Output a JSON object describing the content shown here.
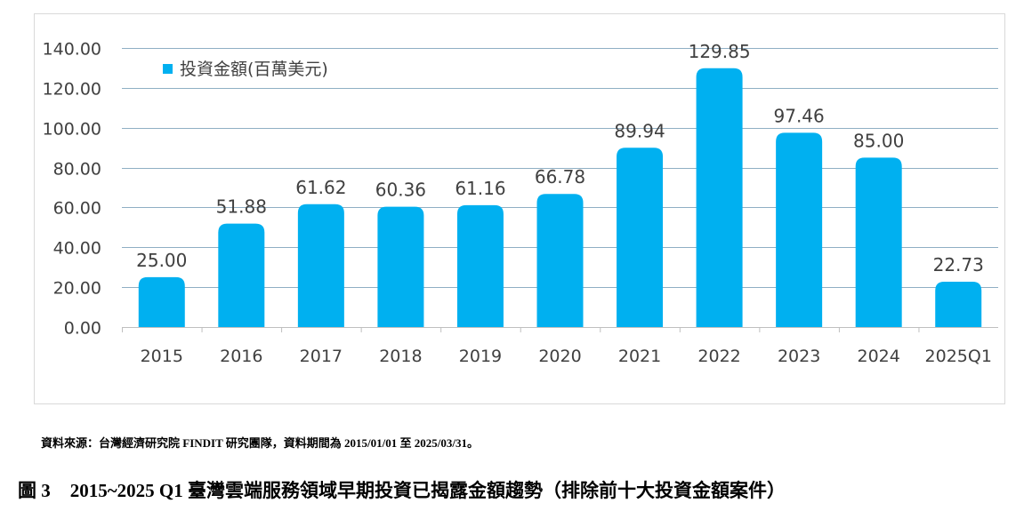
{
  "chart_data": {
    "type": "bar",
    "categories": [
      "2015",
      "2016",
      "2017",
      "2018",
      "2019",
      "2020",
      "2021",
      "2022",
      "2023",
      "2024",
      "2025Q1"
    ],
    "series": [
      {
        "name": "投資金額(百萬美元)",
        "values": [
          25.0,
          51.88,
          61.62,
          60.36,
          61.16,
          66.78,
          89.94,
          129.85,
          97.46,
          85.0,
          22.73
        ]
      }
    ],
    "data_labels": [
      "25.00",
      "51.88",
      "61.62",
      "60.36",
      "61.16",
      "66.78",
      "89.94",
      "129.85",
      "97.46",
      "85.00",
      "22.73"
    ],
    "yticks": [
      "0.00",
      "20.00",
      "40.00",
      "60.00",
      "80.00",
      "100.00",
      "120.00",
      "140.00"
    ],
    "ylim": [
      0,
      140
    ],
    "grid": true,
    "legend_placement": "top-left",
    "colors": {
      "bar": "#00B0F0",
      "grid": "#8FAFC4",
      "text": "#404040"
    }
  },
  "source_note": "資料來源：台灣經濟研究院 FINDIT 研究團隊，資料期間為 2015/01/01 至 2025/03/31。",
  "caption": {
    "number": "圖 3",
    "text": "2015~2025 Q1 臺灣雲端服務領域早期投資已揭露金額趨勢（排除前十大投資金額案件）"
  }
}
